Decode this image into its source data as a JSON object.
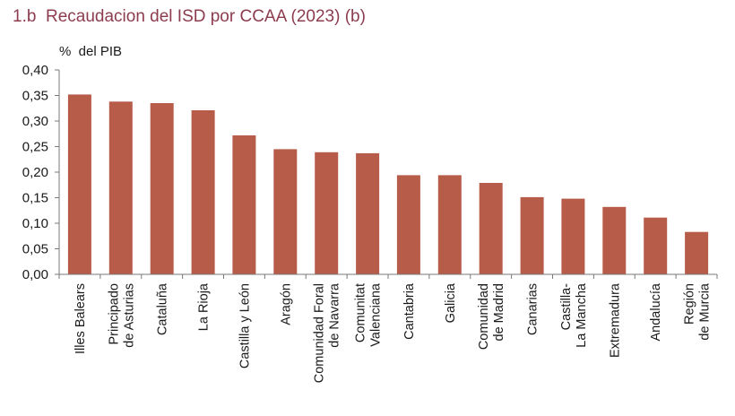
{
  "chart_data": {
    "type": "bar",
    "title": "1.b  Recaudacion del ISD por CCAA (2023) (b)",
    "ylabel": "%  del PIB",
    "xlabel": "",
    "ylim": [
      0,
      0.4
    ],
    "yticks": [
      "0,00",
      "0,05",
      "0,10",
      "0,15",
      "0,20",
      "0,25",
      "0,30",
      "0,35",
      "0,40"
    ],
    "categories": [
      [
        "Illes Balears"
      ],
      [
        "Principado",
        "de Asturias"
      ],
      [
        "Cataluña"
      ],
      [
        "La Rioja"
      ],
      [
        "Castilla y León"
      ],
      [
        "Aragón"
      ],
      [
        "Comunidad Foral",
        "de Navarra"
      ],
      [
        "Comunitat",
        "Valenciana"
      ],
      [
        "Cantabria"
      ],
      [
        "Galicia"
      ],
      [
        "Comunidad",
        "de Madrid"
      ],
      [
        "Canarias"
      ],
      [
        "Castilla-",
        "La Mancha"
      ],
      [
        "Extremadura"
      ],
      [
        "Andalucía"
      ],
      [
        "Región",
        "de Murcia"
      ]
    ],
    "values": [
      0.352,
      0.338,
      0.335,
      0.321,
      0.272,
      0.245,
      0.239,
      0.237,
      0.194,
      0.194,
      0.179,
      0.151,
      0.148,
      0.132,
      0.111,
      0.083
    ],
    "bar_color": "#b85c4a",
    "axis_color": "#7a7a7a",
    "grid": false,
    "legend": "none"
  }
}
